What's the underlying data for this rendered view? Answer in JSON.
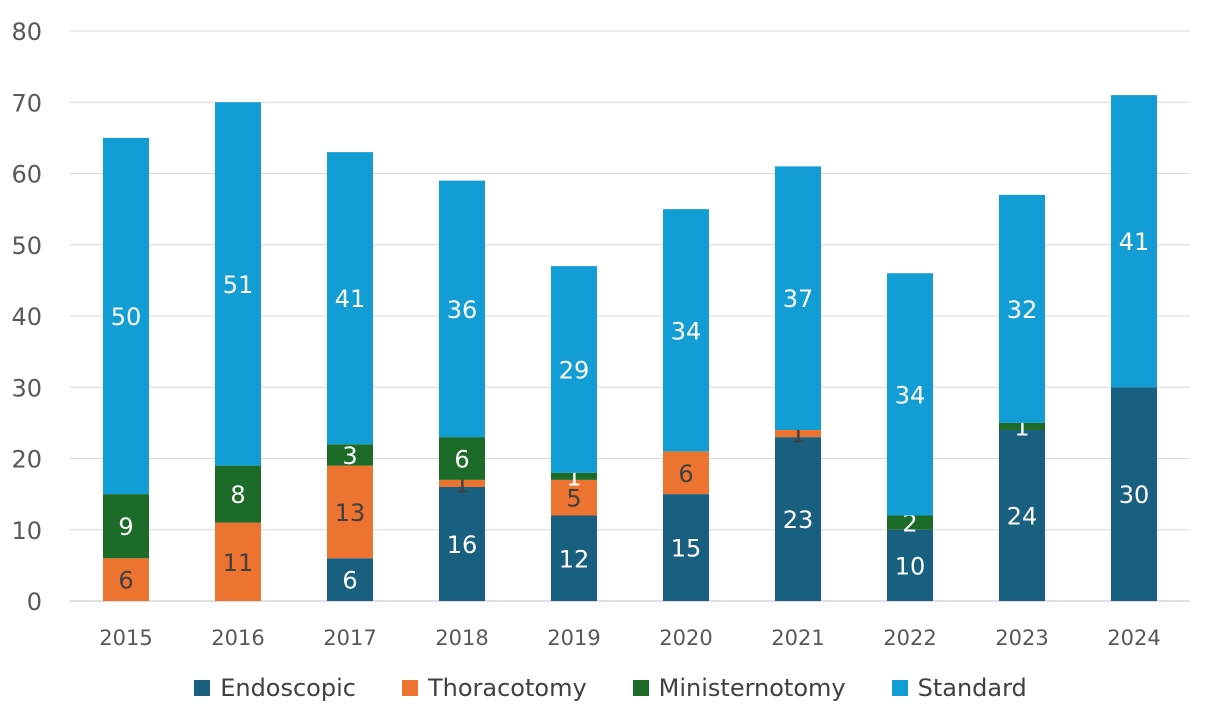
{
  "chart_data": {
    "type": "bar",
    "stacked": true,
    "categories": [
      "2015",
      "2016",
      "2017",
      "2018",
      "2019",
      "2020",
      "2021",
      "2022",
      "2023",
      "2024"
    ],
    "series": [
      {
        "name": "Endoscopic",
        "color": "#185F80",
        "label_color": "#ffffff",
        "values": [
          0,
          0,
          6,
          16,
          12,
          15,
          23,
          10,
          24,
          30
        ]
      },
      {
        "name": "Thoracotomy",
        "color": "#ED7330",
        "label_color": "#404040",
        "values": [
          6,
          11,
          13,
          1,
          5,
          6,
          1,
          0,
          0,
          0
        ]
      },
      {
        "name": "Ministernotomy",
        "color": "#1D6B28",
        "label_color": "#ffffff",
        "values": [
          9,
          8,
          3,
          6,
          1,
          0,
          0,
          2,
          1,
          0
        ]
      },
      {
        "name": "Standard",
        "color": "#129DD5",
        "label_color": "#ffffff",
        "values": [
          50,
          51,
          41,
          36,
          29,
          34,
          37,
          34,
          32,
          41
        ]
      }
    ],
    "ylim": [
      0,
      80
    ],
    "yticks": [
      0,
      10,
      20,
      30,
      40,
      50,
      60,
      70,
      80
    ],
    "title": "",
    "xlabel": "",
    "ylabel": "",
    "grid": true,
    "legend_position": "bottom"
  }
}
